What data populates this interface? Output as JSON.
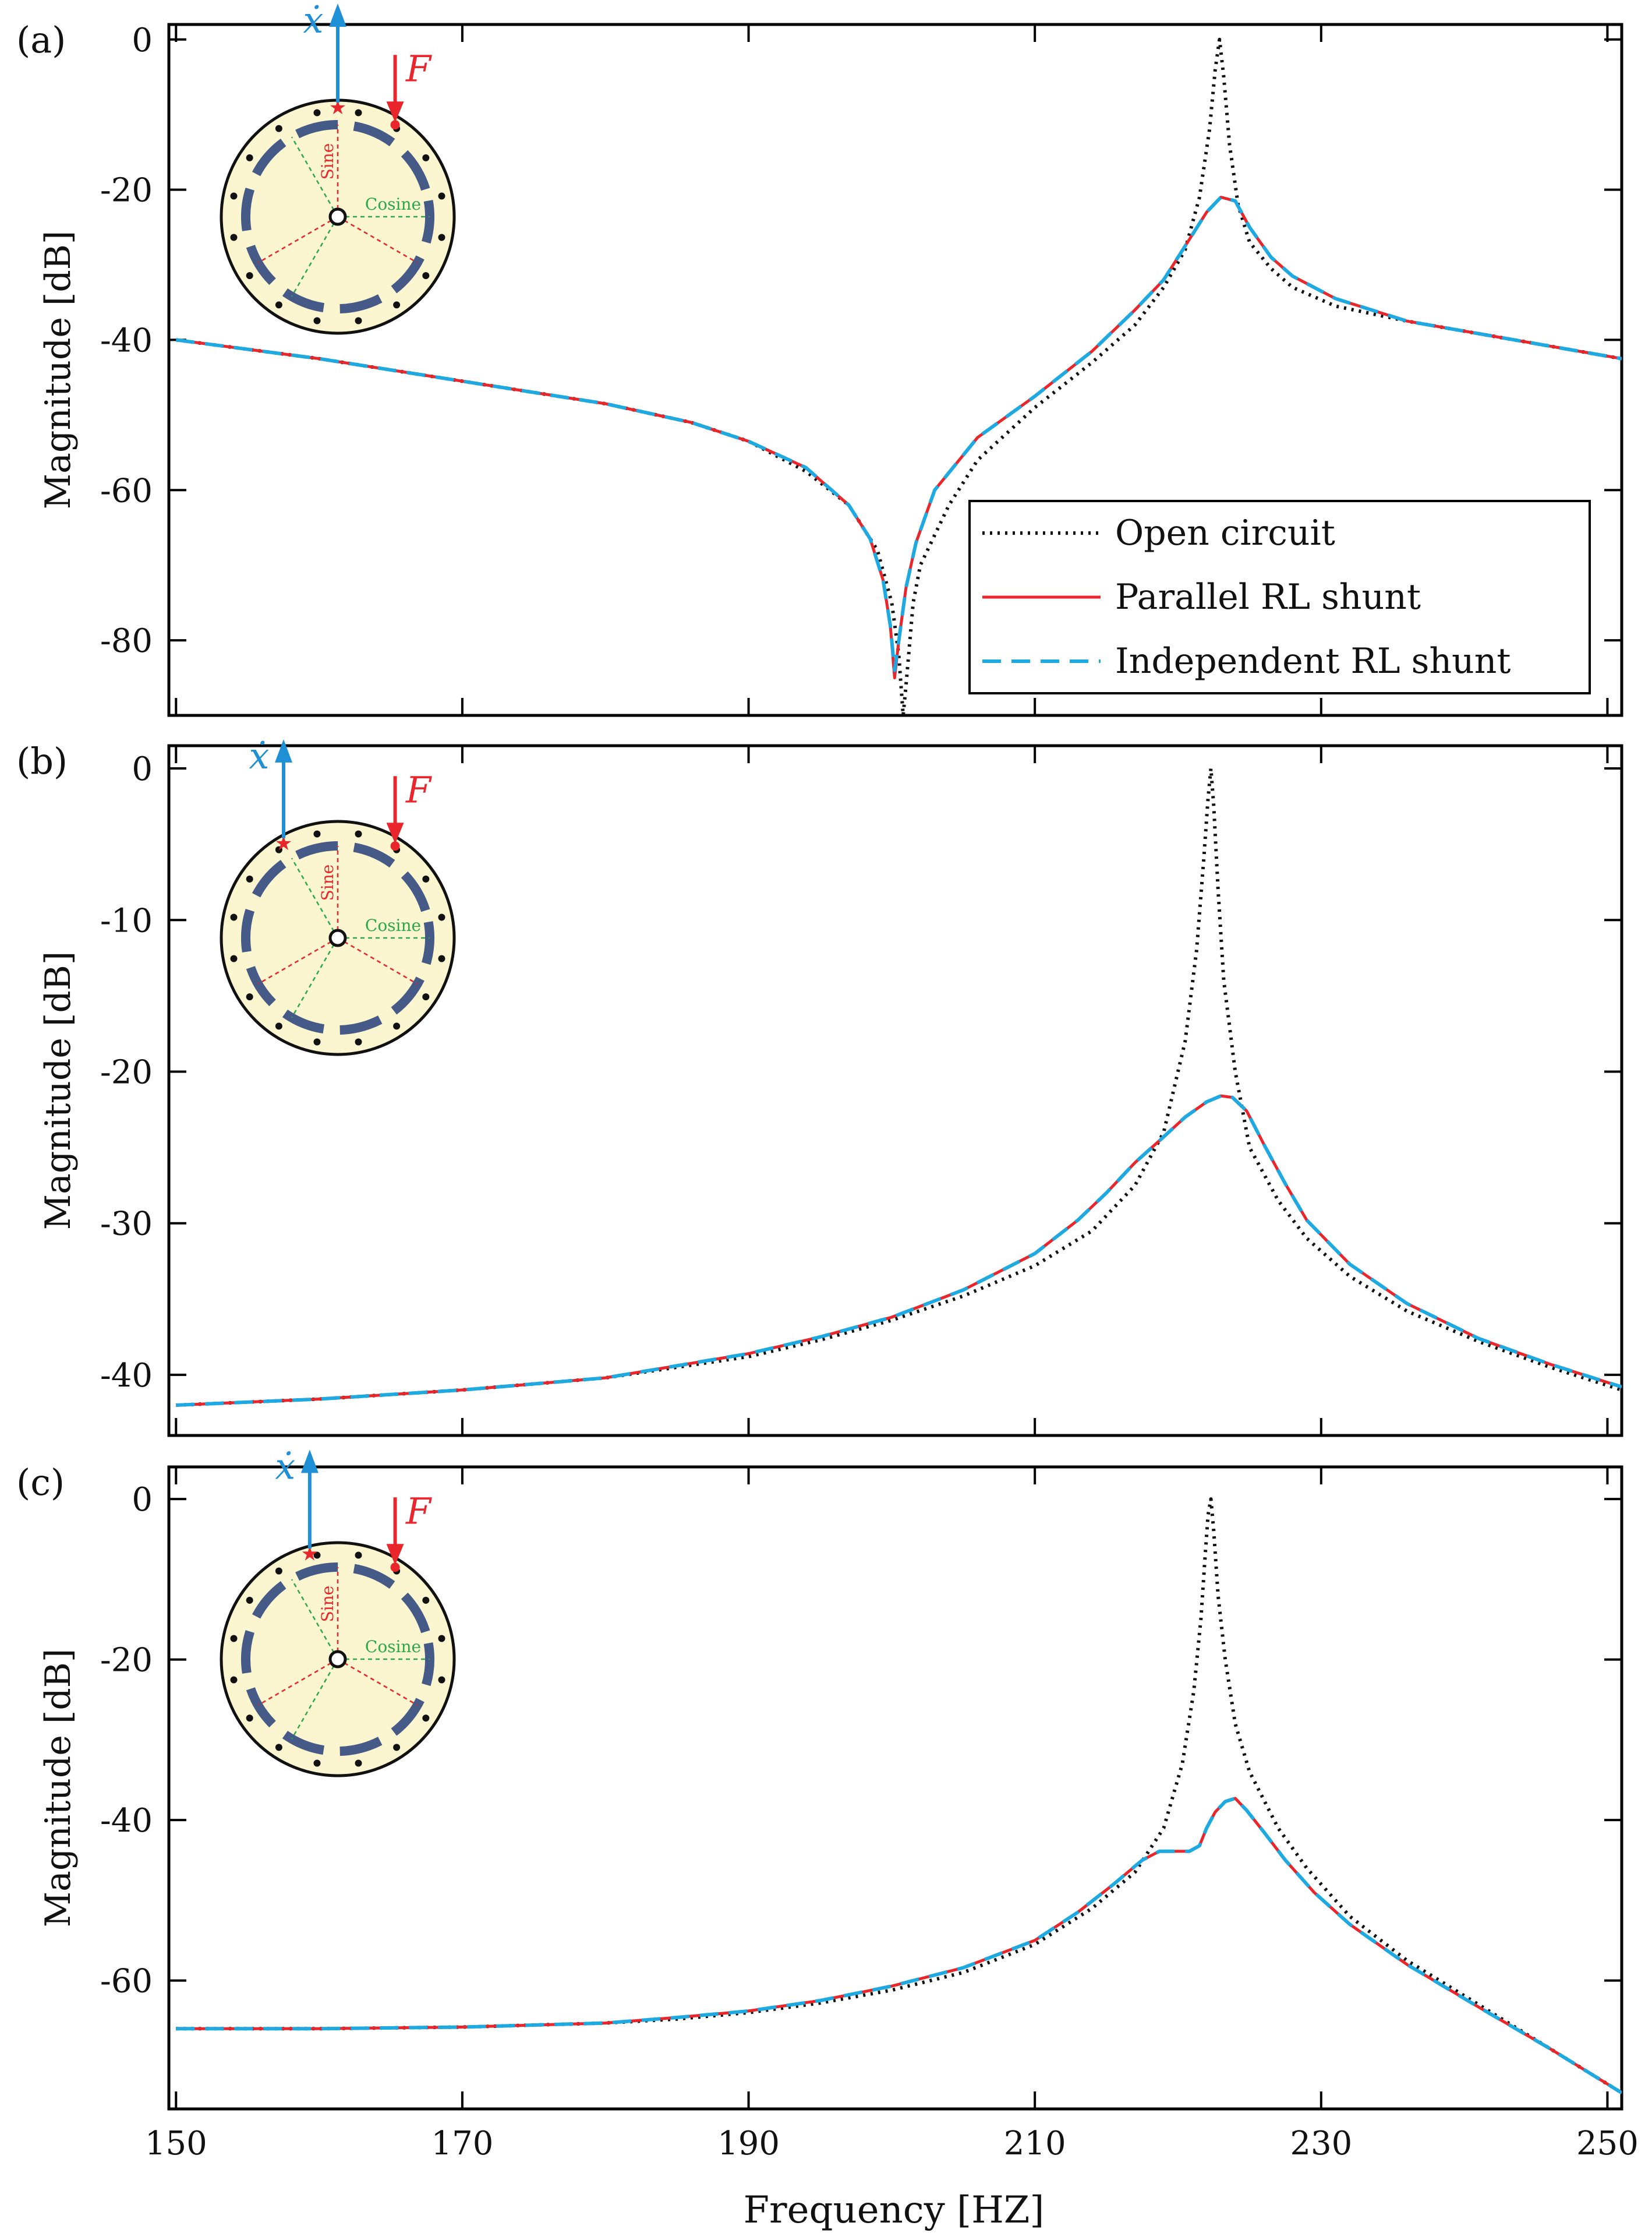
{
  "figure": {
    "x_axis_label": "Frequency  [HZ]",
    "x_tick_labels": [
      "150",
      "170",
      "190",
      "210",
      "230",
      "250"
    ]
  },
  "legend": {
    "entries": [
      {
        "series": "open",
        "label": "Open  circuit"
      },
      {
        "series": "parallel",
        "label": "Parallel RL shunt"
      },
      {
        "series": "independent",
        "label": "Independent RL shunt"
      }
    ]
  },
  "inset": {
    "velocity_symbol": "ẋ",
    "force_symbol": "F",
    "sine_label": "Sine",
    "cosine_label": "Cosine"
  },
  "chart_data": [
    {
      "type": "line",
      "panel": "(a)",
      "xlabel": "Frequency  [HZ]",
      "ylabel": "Magnitude  [dB]",
      "xlim": [
        149.5,
        251
      ],
      "ylim": [
        -90,
        2
      ],
      "x_ticks": [
        150,
        170,
        190,
        210,
        230,
        250
      ],
      "y_ticks": [
        0,
        -20,
        -40,
        -60,
        -80
      ],
      "y_tick_labels": [
        "0",
        "-20",
        "-40",
        "-60",
        "-80"
      ],
      "inset_sensor_angle_deg": 90,
      "series": [
        {
          "key": "open",
          "name": "Open circuit",
          "color": "#111111",
          "style": "dotted",
          "x": [
            150,
            160,
            170,
            180,
            186,
            190,
            194,
            197,
            199,
            200,
            200.5,
            200.8,
            201,
            201.5,
            202,
            204,
            206,
            210,
            214,
            217,
            219,
            220.5,
            221.5,
            222.2,
            222.6,
            222.9,
            223.2,
            223.6,
            224.2,
            225,
            226.5,
            228,
            231,
            236,
            242,
            251
          ],
          "y": [
            -40,
            -42.5,
            -45.5,
            -48.5,
            -51,
            -53.5,
            -57.5,
            -62,
            -68,
            -75,
            -82,
            -90,
            -86,
            -75,
            -70,
            -62,
            -56,
            -49,
            -43,
            -38,
            -33,
            -28,
            -21,
            -12,
            -4,
            0,
            -5,
            -14,
            -22,
            -27,
            -30.5,
            -33,
            -35.5,
            -37.5,
            -39.5,
            -42.5
          ]
        },
        {
          "key": "parallel",
          "name": "Parallel RL shunt",
          "color": "#e8262b",
          "style": "solid",
          "x": [
            150,
            160,
            170,
            180,
            186,
            190,
            194,
            197,
            198.5,
            199.4,
            199.9,
            200.2,
            200.5,
            201,
            201.7,
            203,
            206,
            210,
            214,
            217,
            219,
            220.5,
            222,
            223,
            224,
            225,
            226.5,
            228,
            231,
            236,
            242,
            251
          ],
          "y": [
            -40,
            -42.5,
            -45.5,
            -48.5,
            -51,
            -53.5,
            -57,
            -62,
            -66.5,
            -72,
            -78,
            -85,
            -80,
            -73,
            -67,
            -60,
            -53,
            -47.5,
            -41.5,
            -36,
            -32,
            -27.5,
            -23,
            -21,
            -21.5,
            -25,
            -29,
            -31.5,
            -34.5,
            -37.5,
            -39.5,
            -42.5
          ]
        },
        {
          "key": "independent",
          "name": "Independent RL shunt",
          "color": "#1fa9e1",
          "style": "dashed",
          "x": [
            150,
            160,
            170,
            180,
            186,
            190,
            194,
            197,
            198.5,
            199.4,
            199.9,
            200.2,
            200.5,
            201,
            201.7,
            203,
            206,
            210,
            214,
            217,
            219,
            220.5,
            222,
            223,
            224,
            225,
            226.5,
            228,
            231,
            236,
            242,
            251
          ],
          "y": [
            -40,
            -42.5,
            -45.5,
            -48.5,
            -51,
            -53.5,
            -57,
            -62,
            -66.5,
            -72,
            -78,
            -84,
            -80,
            -73,
            -67,
            -60,
            -53,
            -47.5,
            -41.5,
            -36,
            -32,
            -27.5,
            -23,
            -21,
            -21.5,
            -25,
            -29,
            -31.5,
            -34.5,
            -37.5,
            -39.5,
            -42.5
          ]
        }
      ]
    },
    {
      "type": "line",
      "panel": "(b)",
      "xlabel": "Frequency  [HZ]",
      "ylabel": "Magnitude  [dB]",
      "xlim": [
        149.5,
        251
      ],
      "ylim": [
        -44,
        1.5
      ],
      "x_ticks": [
        150,
        170,
        190,
        210,
        230,
        250
      ],
      "y_ticks": [
        0,
        -10,
        -20,
        -30,
        -40
      ],
      "y_tick_labels": [
        "0",
        "-10",
        "-20",
        "-30",
        "-40"
      ],
      "inset_sensor_angle_deg": 120,
      "series": [
        {
          "key": "open",
          "name": "Open circuit",
          "color": "#111111",
          "style": "dotted",
          "x": [
            150,
            160,
            170,
            180,
            190,
            195,
            200,
            205,
            210,
            214,
            217,
            219,
            220.5,
            221.3,
            221.8,
            222.1,
            222.3,
            222.5,
            222.8,
            223.2,
            224,
            225,
            227,
            229,
            232,
            236,
            241,
            246,
            251
          ],
          "y": [
            -42,
            -41.6,
            -41,
            -40.2,
            -38.8,
            -37.7,
            -36.4,
            -34.8,
            -32.8,
            -30.5,
            -27.5,
            -24,
            -18,
            -12,
            -6,
            -2,
            0,
            -2.5,
            -8,
            -14,
            -20,
            -25,
            -28.5,
            -31,
            -33.5,
            -35.8,
            -37.8,
            -39.5,
            -41
          ]
        },
        {
          "key": "parallel",
          "name": "Parallel RL shunt",
          "color": "#e8262b",
          "style": "solid",
          "x": [
            150,
            160,
            170,
            180,
            190,
            195,
            200,
            205,
            210,
            213,
            215,
            217,
            219,
            220.5,
            222,
            223,
            223.8,
            224.8,
            226,
            227.5,
            229,
            232,
            236,
            241,
            246,
            251
          ],
          "y": [
            -42,
            -41.6,
            -41,
            -40.2,
            -38.6,
            -37.5,
            -36.2,
            -34.4,
            -32,
            -29.8,
            -28,
            -26,
            -24.3,
            -23,
            -22,
            -21.6,
            -21.7,
            -22.6,
            -24.8,
            -27.4,
            -29.8,
            -32.7,
            -35.3,
            -37.6,
            -39.3,
            -40.8
          ]
        },
        {
          "key": "independent",
          "name": "Independent RL shunt",
          "color": "#1fa9e1",
          "style": "dashed",
          "x": [
            150,
            160,
            170,
            180,
            190,
            195,
            200,
            205,
            210,
            213,
            215,
            217,
            219,
            220.5,
            222,
            223,
            223.8,
            224.8,
            226,
            227.5,
            229,
            232,
            236,
            241,
            246,
            251
          ],
          "y": [
            -42,
            -41.6,
            -41,
            -40.2,
            -38.6,
            -37.5,
            -36.2,
            -34.4,
            -32,
            -29.8,
            -28,
            -26,
            -24.3,
            -23,
            -22,
            -21.6,
            -21.7,
            -22.6,
            -24.8,
            -27.4,
            -29.8,
            -32.7,
            -35.3,
            -37.6,
            -39.3,
            -40.8
          ]
        }
      ]
    },
    {
      "type": "line",
      "panel": "(c)",
      "xlabel": "Frequency  [HZ]",
      "ylabel": "Magnitude  [dB]",
      "xlim": [
        149.5,
        251
      ],
      "ylim": [
        -76,
        4
      ],
      "x_ticks": [
        150,
        170,
        190,
        210,
        230,
        250
      ],
      "y_ticks": [
        0,
        -20,
        -40,
        -60
      ],
      "y_tick_labels": [
        "0",
        "-20",
        "-40",
        "-60"
      ],
      "inset_sensor_angle_deg": 105,
      "series": [
        {
          "key": "open",
          "name": "Open circuit",
          "color": "#111111",
          "style": "dotted",
          "x": [
            150,
            160,
            170,
            180,
            185,
            190,
            195,
            200,
            205,
            210,
            214,
            217,
            219,
            220.3,
            221.1,
            221.6,
            221.9,
            222.1,
            222.3,
            222.5,
            222.8,
            223.3,
            224,
            225,
            227,
            229,
            232,
            236,
            241,
            246,
            251
          ],
          "y": [
            -66,
            -66,
            -65.8,
            -65.3,
            -64.8,
            -64,
            -62.8,
            -61.2,
            -59,
            -55.5,
            -51,
            -46.5,
            -41,
            -33,
            -24,
            -15,
            -7,
            -2,
            0,
            -4,
            -12,
            -20,
            -28,
            -34,
            -41,
            -46,
            -52,
            -57.5,
            -63,
            -68.5,
            -74
          ]
        },
        {
          "key": "parallel",
          "name": "Parallel RL shunt",
          "color": "#e8262b",
          "style": "solid",
          "x": [
            150,
            160,
            170,
            180,
            185,
            190,
            195,
            200,
            205,
            210,
            213,
            215.5,
            217.5,
            218.7,
            220.8,
            221.5,
            222,
            222.6,
            223.3,
            224,
            224.8,
            226,
            227.5,
            229.5,
            232,
            236,
            241,
            246,
            251
          ],
          "y": [
            -66,
            -66,
            -65.8,
            -65.3,
            -64.6,
            -63.8,
            -62.5,
            -60.7,
            -58.4,
            -55,
            -51.5,
            -48,
            -45,
            -43.9,
            -43.9,
            -43.2,
            -41,
            -39,
            -37.7,
            -37.3,
            -38.8,
            -41.5,
            -45,
            -49,
            -53,
            -58,
            -63.3,
            -68.5,
            -74
          ]
        },
        {
          "key": "independent",
          "name": "Independent RL shunt",
          "color": "#1fa9e1",
          "style": "dashed",
          "x": [
            150,
            160,
            170,
            180,
            185,
            190,
            195,
            200,
            205,
            210,
            213,
            215.5,
            217.5,
            218.7,
            220.8,
            221.5,
            222,
            222.6,
            223.3,
            224,
            224.8,
            226,
            227.5,
            229.5,
            232,
            236,
            241,
            246,
            251
          ],
          "y": [
            -66,
            -66,
            -65.8,
            -65.3,
            -64.6,
            -63.8,
            -62.5,
            -60.7,
            -58.4,
            -55,
            -51.5,
            -48,
            -45,
            -43.9,
            -43.9,
            -43.2,
            -41,
            -39,
            -37.7,
            -37.3,
            -38.8,
            -41.5,
            -45,
            -49,
            -53,
            -58,
            -63.3,
            -68.5,
            -74
          ]
        }
      ]
    }
  ]
}
